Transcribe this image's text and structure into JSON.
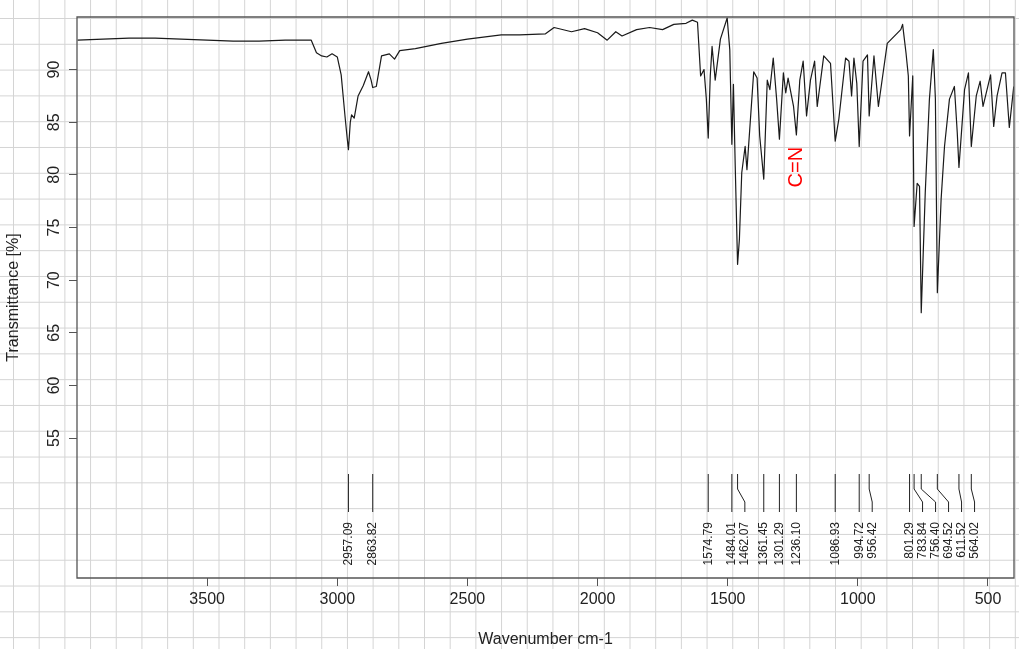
{
  "chart_data": {
    "type": "line",
    "xlabel": "Wavenumber cm-1",
    "ylabel": "Transmittance [%]",
    "xlim": [
      4000,
      400
    ],
    "ylim": [
      41.7,
      95
    ],
    "xticks": [
      3500,
      3000,
      2500,
      2000,
      1500,
      1000,
      500
    ],
    "yticks": [
      55,
      60,
      65,
      70,
      75,
      80,
      85,
      90
    ],
    "grid": false,
    "legend": false,
    "marker": "none",
    "line_style": "solid",
    "series": [
      {
        "color": "#1a1a1a",
        "x": [
          3998,
          3900,
          3800,
          3700,
          3600,
          3500,
          3400,
          3300,
          3200,
          3100,
          3080,
          3060,
          3040,
          3020,
          3000,
          2985,
          2970,
          2962,
          2957.09,
          2950,
          2945,
          2935,
          2920,
          2900,
          2880,
          2870,
          2863.82,
          2850,
          2830,
          2800,
          2780,
          2760,
          2700,
          2600,
          2500,
          2370,
          2300,
          2200,
          2167,
          2100,
          2050,
          2000,
          1963,
          1930,
          1906,
          1850,
          1800,
          1750,
          1707,
          1660,
          1636,
          1616,
          1604,
          1591,
          1582,
          1574.79,
          1567,
          1560,
          1548,
          1528,
          1502,
          1492,
          1484.01,
          1478,
          1471,
          1462.07,
          1455,
          1446,
          1433,
          1426,
          1400,
          1387,
          1377,
          1361.45,
          1348,
          1338,
          1325,
          1312,
          1301.29,
          1286,
          1277,
          1268,
          1247,
          1236.1,
          1223,
          1210,
          1197,
          1182,
          1166,
          1156,
          1131,
          1105,
          1086.93,
          1073,
          1047,
          1034,
          1024,
          1015,
          1004,
          994.72,
          980,
          963,
          956.42,
          938,
          921,
          887,
          835,
          828,
          815,
          806,
          801.29,
          789,
          783.84,
          772,
          763,
          756.4,
          741,
          725,
          710,
          702,
          694.52,
          680,
          667,
          648,
          629,
          618,
          611.52,
          590,
          575,
          564.02,
          545,
          530,
          519,
          490,
          478,
          465,
          446,
          433,
          418,
          401
        ],
        "values": [
          92.8,
          92.9,
          93.0,
          93.0,
          92.9,
          92.8,
          92.7,
          92.7,
          92.8,
          92.8,
          91.6,
          91.3,
          91.2,
          91.5,
          91.2,
          89.5,
          85.5,
          83.5,
          82.4,
          85.0,
          85.7,
          85.4,
          87.5,
          88.5,
          89.8,
          89.0,
          88.3,
          88.4,
          91.3,
          91.5,
          91.0,
          91.8,
          92.0,
          92.5,
          92.9,
          93.3,
          93.3,
          93.4,
          94.0,
          93.6,
          93.9,
          93.5,
          92.8,
          93.6,
          93.2,
          93.8,
          94.0,
          93.8,
          94.3,
          94.4,
          94.7,
          94.5,
          89.4,
          90.0,
          87.2,
          83.5,
          89.4,
          92.2,
          89.0,
          92.9,
          94.9,
          91.9,
          82.9,
          88.6,
          80.8,
          71.5,
          73.9,
          80.2,
          82.7,
          80.5,
          89.8,
          89.2,
          83.7,
          79.6,
          89.0,
          88.1,
          91.1,
          87.2,
          83.4,
          89.7,
          87.8,
          89.2,
          86.5,
          83.8,
          89.0,
          90.8,
          85.6,
          89.0,
          90.8,
          86.5,
          91.3,
          90.6,
          83.2,
          85.3,
          91.1,
          90.8,
          87.5,
          91.1,
          88.7,
          82.7,
          90.8,
          91.4,
          85.6,
          91.3,
          86.5,
          92.5,
          93.8,
          94.3,
          91.6,
          89.4,
          83.7,
          89.4,
          75.1,
          79.2,
          78.9,
          66.9,
          78.3,
          87.2,
          91.9,
          87.2,
          68.8,
          77.7,
          82.7,
          87.2,
          88.4,
          84.0,
          80.7,
          88.1,
          89.7,
          82.7,
          87.5,
          88.9,
          86.5,
          89.5,
          84.6,
          87.5,
          89.7,
          89.7,
          84.5,
          88.4
        ]
      }
    ],
    "annotations": [
      {
        "text": "C=N",
        "x": 1236.1,
        "y": 83.8
      },
      {
        "text": "2957.09",
        "x": 2957.09
      },
      {
        "text": "2863.82",
        "x": 2863.82
      },
      {
        "text": "1574.79",
        "x": 1574.79
      },
      {
        "text": "1484.01",
        "x": 1484.01
      },
      {
        "text": "1462.07",
        "x": 1462.07
      },
      {
        "text": "1361.45",
        "x": 1361.45
      },
      {
        "text": "1301.29",
        "x": 1301.29
      },
      {
        "text": "1236.10",
        "x": 1236.1
      },
      {
        "text": "1086.93",
        "x": 1086.93
      },
      {
        "text": "994.72",
        "x": 994.72
      },
      {
        "text": "956.42",
        "x": 956.42
      },
      {
        "text": "801.29",
        "x": 801.29
      },
      {
        "text": "783.84",
        "x": 783.84
      },
      {
        "text": "756.40",
        "x": 756.4
      },
      {
        "text": "694.52",
        "x": 694.52
      },
      {
        "text": "611.52",
        "x": 611.52
      },
      {
        "text": "564.02",
        "x": 564.02
      }
    ]
  }
}
